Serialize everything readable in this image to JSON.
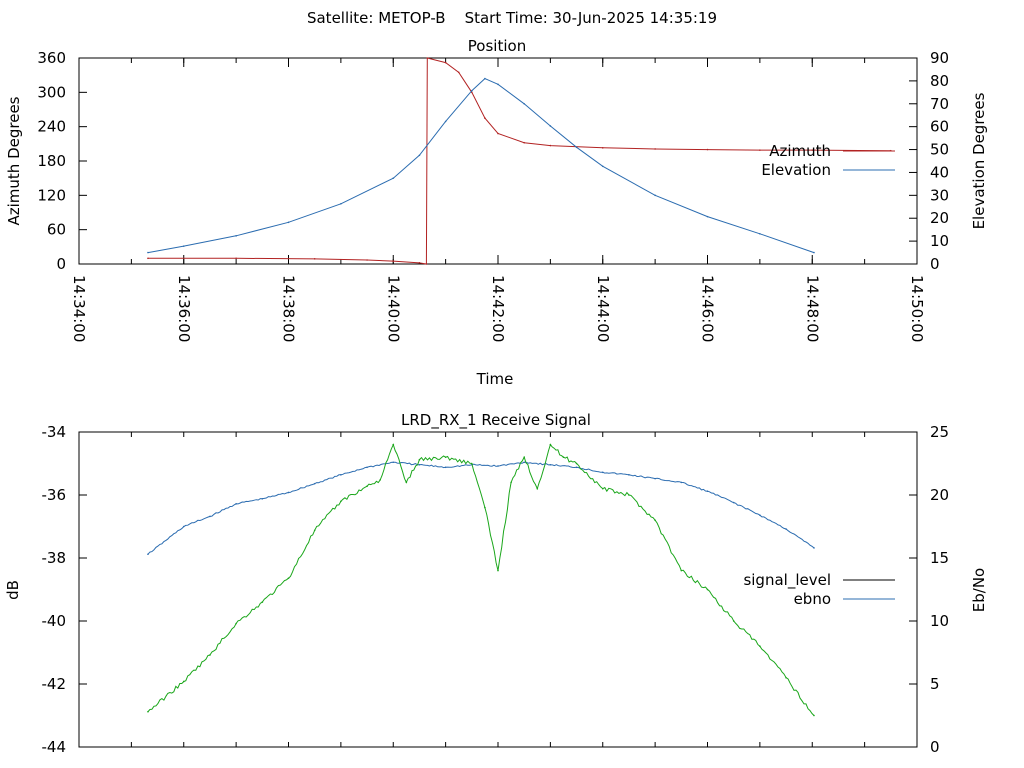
{
  "header": {
    "title": "Satellite: METOP-B    Start Time: 30-Jun-2025 14:35:19"
  },
  "colors": {
    "azimuth": "#b22222",
    "elevation": "#2b6cb0",
    "signal_level": "#000000",
    "ebno_line": "#2b6cb0",
    "green_trace": "#1aa61a"
  },
  "chart_data": [
    {
      "type": "line",
      "title": "Position",
      "xlabel": "Time",
      "ylabel": "Azimuth Degrees",
      "y2label": "Elevation Degrees",
      "xlim": [
        "14:34:00",
        "14:50:00"
      ],
      "ylim": [
        0,
        360
      ],
      "y2lim": [
        0,
        90
      ],
      "x_ticks": [
        "14:34:00",
        "14:36:00",
        "14:38:00",
        "14:40:00",
        "14:42:00",
        "14:44:00",
        "14:46:00",
        "14:48:00",
        "14:50:00"
      ],
      "y_ticks": [
        "0",
        "60",
        "120",
        "180",
        "240",
        "300",
        "360"
      ],
      "y2_ticks": [
        "0",
        "10",
        "20",
        "30",
        "40",
        "50",
        "60",
        "70",
        "80",
        "90"
      ],
      "legend_position": "right",
      "grid": false,
      "series": [
        {
          "name": "Azimuth",
          "axis": "y",
          "x": [
            "14:35:19",
            "14:37:00",
            "14:38:30",
            "14:39:30",
            "14:40:00",
            "14:40:30",
            "14:40:38",
            "14:40:39",
            "14:41:00",
            "14:41:15",
            "14:41:30",
            "14:41:45",
            "14:42:00",
            "14:42:30",
            "14:43:00",
            "14:44:00",
            "14:45:00",
            "14:46:00",
            "14:47:00",
            "14:48:00",
            "14:49:30"
          ],
          "values": [
            10,
            10,
            9,
            7,
            5,
            2,
            0,
            360,
            352,
            335,
            300,
            255,
            228,
            212,
            207,
            203,
            201,
            200,
            199,
            199,
            198
          ]
        },
        {
          "name": "Elevation",
          "axis": "y2",
          "x": [
            "14:35:19",
            "14:36:00",
            "14:37:00",
            "14:38:00",
            "14:39:00",
            "14:40:00",
            "14:40:30",
            "14:41:00",
            "14:41:30",
            "14:41:45",
            "14:42:00",
            "14:42:30",
            "14:43:00",
            "14:43:30",
            "14:44:00",
            "14:45:00",
            "14:46:00",
            "14:47:00",
            "14:48:02"
          ],
          "values": [
            5,
            7.8,
            12.3,
            18.2,
            26.3,
            37.5,
            47.5,
            62.3,
            75.7,
            81,
            78.5,
            70,
            60.3,
            51,
            42.7,
            30,
            20.7,
            13.2,
            5
          ]
        }
      ]
    },
    {
      "type": "line",
      "title": "LRD_RX_1 Receive Signal",
      "xlabel": "",
      "ylabel": "dB",
      "y2label": "Eb/No",
      "xlim": [
        "14:34:00",
        "14:50:00"
      ],
      "ylim": [
        -44,
        -34
      ],
      "y2lim": [
        0,
        25
      ],
      "y_ticks": [
        "-34",
        "-36",
        "-38",
        "-40",
        "-42",
        "-44"
      ],
      "y2_ticks": [
        "0",
        "5",
        "10",
        "15",
        "20",
        "25"
      ],
      "legend_position": "right",
      "grid": false,
      "series": [
        {
          "name": "signal_level",
          "axis": "y",
          "x": [],
          "values": []
        },
        {
          "name": "ebno",
          "axis": "y2",
          "x": [
            "14:35:19",
            "14:36:00",
            "14:36:30",
            "14:37:00",
            "14:37:30",
            "14:38:00",
            "14:38:30",
            "14:39:00",
            "14:39:30",
            "14:40:00",
            "14:40:30",
            "14:41:00",
            "14:41:30",
            "14:42:00",
            "14:42:30",
            "14:43:00",
            "14:43:30",
            "14:44:00",
            "14:44:30",
            "14:45:00",
            "14:45:30",
            "14:46:00",
            "14:46:30",
            "14:47:00",
            "14:47:30",
            "14:48:02"
          ],
          "values": [
            15.3,
            17.5,
            18.3,
            19.3,
            19.7,
            20.2,
            20.9,
            21.6,
            22.2,
            22.6,
            22.4,
            22.2,
            22.4,
            22.3,
            22.6,
            22.4,
            22.2,
            21.8,
            21.6,
            21.3,
            21.0,
            20.3,
            19.4,
            18.4,
            17.3,
            15.8
          ]
        },
        {
          "name": "",
          "axis": "y2",
          "x": [
            "14:35:19",
            "14:36:00",
            "14:36:30",
            "14:37:00",
            "14:37:30",
            "14:38:00",
            "14:38:30",
            "14:39:00",
            "14:39:30",
            "14:39:45",
            "14:40:00",
            "14:40:15",
            "14:40:30",
            "14:41:00",
            "14:41:30",
            "14:41:45",
            "14:42:00",
            "14:42:15",
            "14:42:30",
            "14:42:45",
            "14:43:00",
            "14:43:15",
            "14:43:30",
            "14:44:00",
            "14:44:30",
            "14:45:00",
            "14:45:30",
            "14:46:00",
            "14:46:30",
            "14:47:00",
            "14:47:30",
            "14:48:02"
          ],
          "values": [
            2.8,
            5.2,
            7.3,
            9.8,
            11.5,
            13.4,
            17.2,
            19.5,
            20.7,
            21.2,
            24.0,
            21.0,
            22.8,
            23.0,
            22.5,
            19.0,
            14.0,
            21.0,
            23.0,
            20.5,
            24.0,
            23.0,
            22.5,
            20.5,
            20.0,
            18.0,
            14.0,
            12.5,
            10.0,
            8.0,
            5.5,
            2.5
          ]
        }
      ]
    }
  ]
}
